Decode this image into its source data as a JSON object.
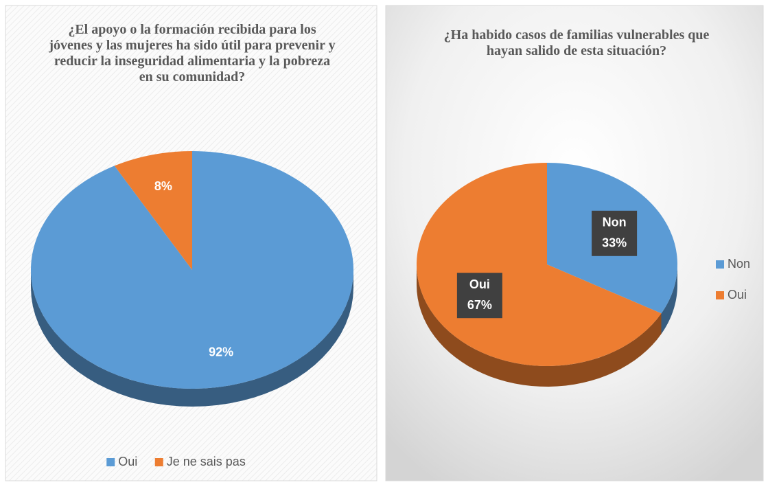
{
  "chart_data": [
    {
      "type": "pie",
      "title": "¿El apoyo o la formación recibida para los jóvenes y las mujeres ha sido útil para prevenir y reducir la inseguridad alimentaria y la pobreza en su comunidad?",
      "categories": [
        "Oui",
        "Je ne sais pas"
      ],
      "values": [
        92,
        8
      ],
      "value_labels": [
        "92%",
        "8%"
      ],
      "colors": [
        "#5b9bd5",
        "#ed7d31"
      ],
      "legend": "bottom"
    },
    {
      "type": "pie",
      "title": "¿Ha habido casos de familias vulnerables que hayan salido de esta situación?",
      "categories": [
        "Non",
        "Oui"
      ],
      "values": [
        33,
        67
      ],
      "value_labels": [
        "33%",
        "67%"
      ],
      "colors": [
        "#5b9bd5",
        "#ed7d31"
      ],
      "legend": "right",
      "category_in_label": true
    }
  ]
}
